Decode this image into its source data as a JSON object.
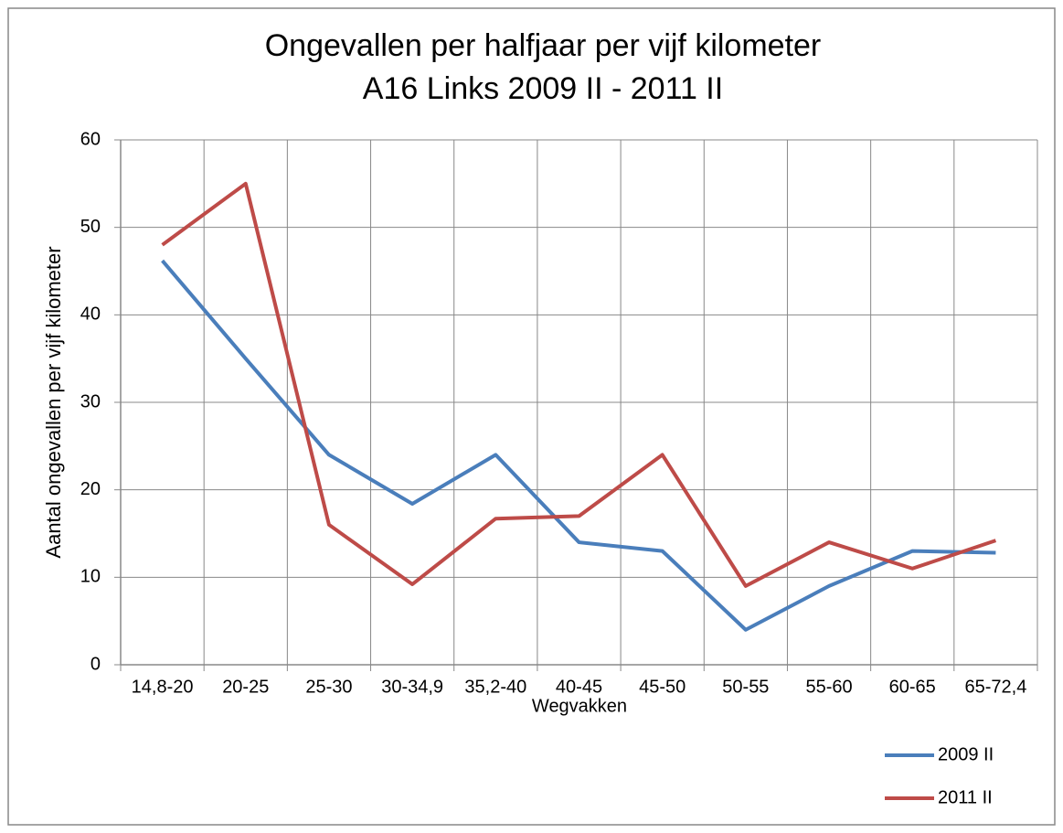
{
  "chart_data": {
    "type": "line",
    "title": "Ongevallen per halfjaar per vijf kilometer",
    "subtitle": "A16 Links 2009 II - 2011 II",
    "x_label": "Wegvakken",
    "y_label": "Aantal ongevallen per vijf kilometer",
    "categories": [
      "14,8-20",
      "20-25",
      "25-30",
      "30-34,9",
      "35,2-40",
      "40-45",
      "45-50",
      "50-55",
      "55-60",
      "60-65",
      "65-72,4"
    ],
    "series": [
      {
        "name": "2009 II",
        "color": "#4a7ebb",
        "values": [
          46.2,
          35,
          24,
          18.4,
          24,
          14,
          13,
          4,
          9,
          13,
          12.8
        ]
      },
      {
        "name": "2011 II",
        "color": "#be4b48",
        "values": [
          48,
          55,
          16,
          9.2,
          16.7,
          17,
          24,
          9,
          14,
          11,
          14.2
        ]
      }
    ],
    "ylim": [
      0,
      60
    ],
    "yticks": [
      0,
      10,
      20,
      30,
      40,
      50,
      60
    ],
    "grid": true,
    "legend": "lower right"
  }
}
